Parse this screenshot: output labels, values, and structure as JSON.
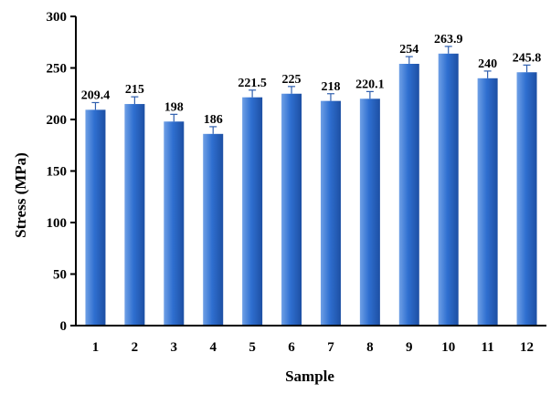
{
  "chart_data": {
    "type": "bar",
    "categories": [
      "1",
      "2",
      "3",
      "4",
      "5",
      "6",
      "7",
      "8",
      "9",
      "10",
      "11",
      "12"
    ],
    "values": [
      209.4,
      215,
      198,
      186,
      221.5,
      225,
      218,
      220.1,
      254,
      263.9,
      240,
      245.8
    ],
    "data_labels": [
      "209.4",
      "215",
      "198",
      "186",
      "221.5",
      "225",
      "218",
      "220.1",
      "254",
      "263.9",
      "240",
      "245.8"
    ],
    "error": [
      7,
      7,
      7,
      7,
      7,
      7,
      7,
      7,
      7,
      7,
      7,
      7
    ],
    "xlabel": "Sample",
    "ylabel": "Stress (MPa)",
    "ylim": [
      0,
      300
    ],
    "yticks": [
      0,
      50,
      100,
      150,
      200,
      250,
      300
    ],
    "grid": false,
    "legend": "none",
    "colors": {
      "bar_light": "#6fa0e6",
      "bar_mid": "#2f6fd0",
      "bar_dark": "#1d4fa3",
      "axis": "#000000"
    }
  }
}
